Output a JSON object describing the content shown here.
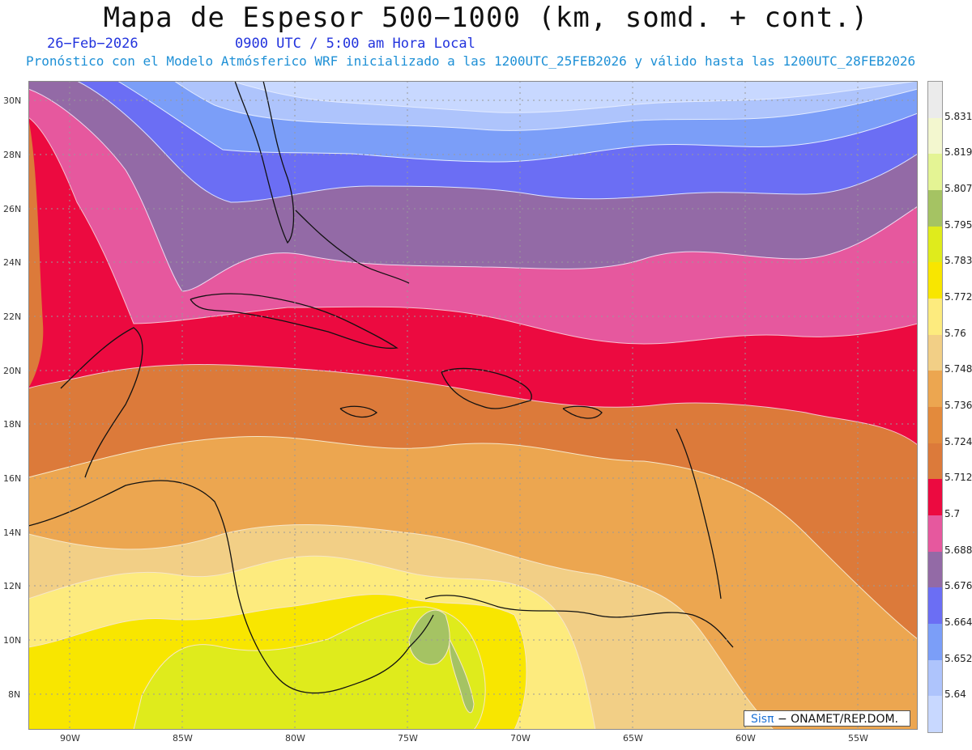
{
  "header": {
    "title": "Mapa de Espesor 500−1000 (km, somd. + cont.)",
    "date": "26−Feb−2026",
    "time": "0900 UTC / 5:00 am Hora Local",
    "info": "Pronóstico con el Modelo Atmósferico WRF inicializado a las 1200UTC_25FEB2026 y válido hasta las  1200UTC_28FEB2026"
  },
  "map": {
    "lon_ticks": [
      "90W",
      "85W",
      "80W",
      "75W",
      "70W",
      "65W",
      "60W",
      "55W"
    ],
    "lat_ticks": [
      "30N",
      "28N",
      "26N",
      "24N",
      "22N",
      "20N",
      "18N",
      "16N",
      "14N",
      "12N",
      "10N",
      "8N"
    ],
    "lon_range": [
      -92,
      -52.5
    ],
    "lat_range": [
      6.8,
      30.7
    ]
  },
  "colorbar": {
    "labels": [
      "5.831",
      "5.819",
      "5.807",
      "5.795",
      "5.783",
      "5.772",
      "5.76",
      "5.748",
      "5.736",
      "5.724",
      "5.712",
      "5.7",
      "5.688",
      "5.676",
      "5.664",
      "5.652",
      "5.64"
    ],
    "colors": [
      "#ebebeb",
      "#f3f7cf",
      "#e4f494",
      "#a5c363",
      "#dfeb1c",
      "#f8e600",
      "#fdeb7e",
      "#f2cf86",
      "#eca650",
      "#e38a3c",
      "#dc7a3a",
      "#ec0a40",
      "#e6589e",
      "#936aa6",
      "#6b6ef4",
      "#7b9ef8",
      "#aec4fc",
      "#c8d8ff"
    ]
  },
  "credit": {
    "sis": "Sisπ",
    "rest": "− ONAMET/REP.DOM."
  }
}
